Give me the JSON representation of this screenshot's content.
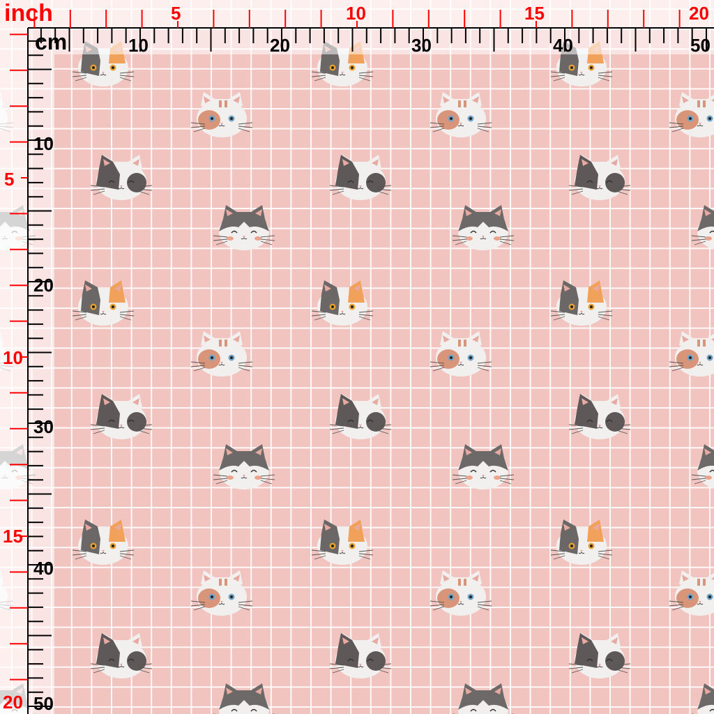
{
  "ruler": {
    "inch_unit_label": "inch",
    "cm_unit_label": "cm",
    "top_inch_labels": [
      "5",
      "10",
      "15",
      "20"
    ],
    "top_cm_labels": [
      "10",
      "20",
      "30",
      "40",
      "50"
    ],
    "left_cm_labels": [
      "10",
      "20",
      "30",
      "40",
      "50"
    ],
    "left_inch_labels": [
      "5",
      "10",
      "15",
      "20"
    ],
    "inch_color": "#ff0000",
    "cm_color": "#000000"
  },
  "fabric": {
    "background_color": "#f2c4c0",
    "grid_color": "#ffffff",
    "motifs": [
      "calico-cat-face-icon",
      "blue-eyed-cat-face-icon",
      "dark-cat-face-icon",
      "smiling-cat-face-icon"
    ]
  }
}
